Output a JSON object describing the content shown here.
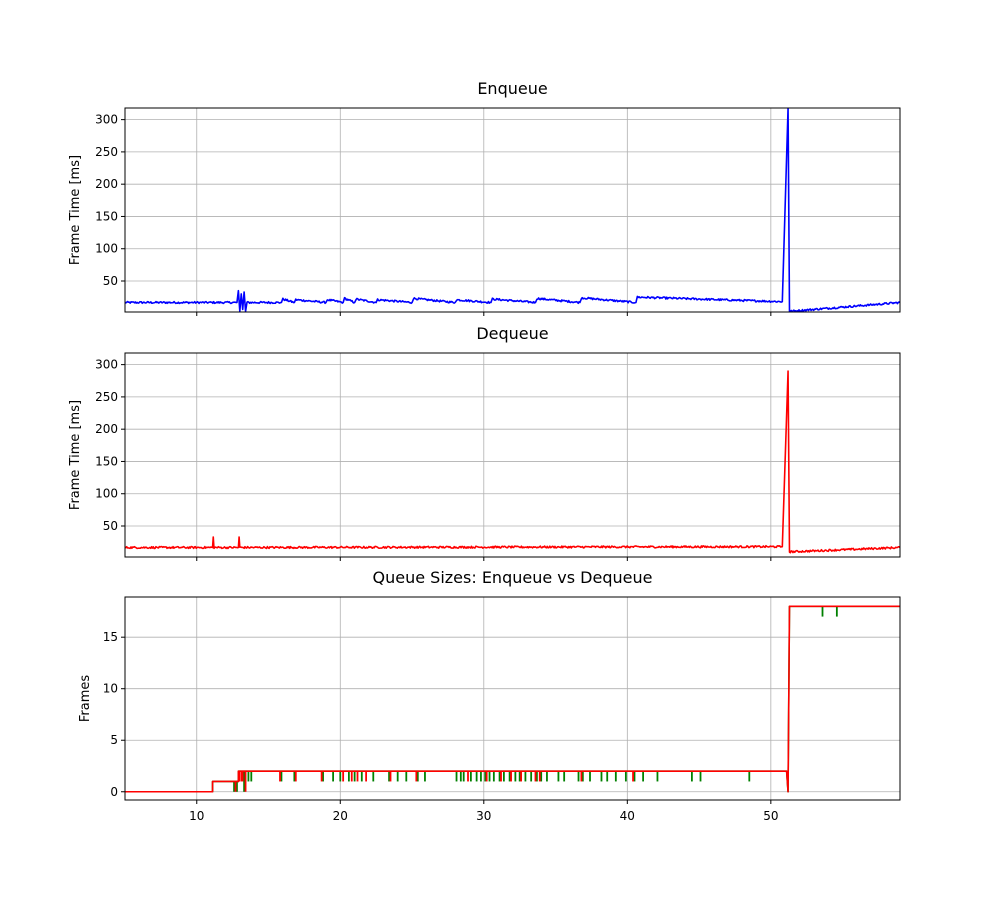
{
  "chart_data": [
    {
      "type": "line",
      "title": "Enqueue",
      "xlabel": "",
      "ylabel": "Frame Time [ms]",
      "xlim": [
        5,
        59
      ],
      "ylim": [
        2,
        318
      ],
      "grid": true,
      "xticks": [
        10,
        20,
        30,
        40,
        50
      ],
      "yticks": [
        50,
        100,
        150,
        200,
        250,
        300
      ],
      "show_xtick_labels": false,
      "series": [
        {
          "color": "#0000ff",
          "baseline": 16.7,
          "noise": 1.5,
          "x": [
            5,
            12.8,
            12.9,
            13.0,
            13.1,
            13.2,
            13.3,
            13.4,
            13.5,
            15.9,
            16.0,
            16.8,
            16.9,
            19.0,
            19.1,
            20.2,
            20.3,
            21.0,
            21.1,
            22.5,
            22.6,
            25.0,
            25.1,
            28.0,
            28.1,
            30.5,
            30.6,
            33.6,
            33.7,
            36.7,
            36.8,
            40.6,
            40.7,
            50.8,
            51.2,
            51.3,
            59
          ],
          "y": [
            16.7,
            16.7,
            35.0,
            3.0,
            30.0,
            6.0,
            33.0,
            3.0,
            16.7,
            16.7,
            22.0,
            16.7,
            21.0,
            16.7,
            21.0,
            16.7,
            23.0,
            16.7,
            22.0,
            16.7,
            21.0,
            16.7,
            23.0,
            16.7,
            21.0,
            16.7,
            22.0,
            16.7,
            23.0,
            16.7,
            24.0,
            16.7,
            25.0,
            18.0,
            318.0,
            3.0,
            16.7
          ]
        }
      ]
    },
    {
      "type": "line",
      "title": "Dequeue",
      "xlabel": "",
      "ylabel": "Frame Time [ms]",
      "xlim": [
        5,
        59
      ],
      "ylim": [
        2,
        318
      ],
      "grid": true,
      "xticks": [
        10,
        20,
        30,
        40,
        50
      ],
      "yticks": [
        50,
        100,
        150,
        200,
        250,
        300
      ],
      "show_xtick_labels": false,
      "series": [
        {
          "color": "#ff0000",
          "baseline": 16.7,
          "noise": 1.5,
          "x": [
            5,
            11.1,
            11.15,
            11.2,
            12.9,
            12.95,
            13.0,
            50.8,
            51.2,
            51.3,
            59
          ],
          "y": [
            16.7,
            16.7,
            33.0,
            16.7,
            16.7,
            33.0,
            16.7,
            18.0,
            290.0,
            10.0,
            16.7
          ]
        }
      ]
    },
    {
      "type": "line",
      "title": "Queue Sizes: Enqueue vs Dequeue",
      "xlabel": "",
      "ylabel": "Frames",
      "xlim": [
        5,
        59
      ],
      "ylim": [
        -0.8,
        18.9
      ],
      "grid": true,
      "xticks": [
        10,
        20,
        30,
        40,
        50
      ],
      "yticks": [
        0,
        5,
        10,
        15
      ],
      "show_xtick_labels": true,
      "series": [
        {
          "color": "#008000",
          "x": [
            5,
            11.1,
            11.1,
            12.9,
            12.9,
            51.1,
            51.2,
            51.3,
            59
          ],
          "y": [
            0,
            0,
            1,
            1,
            2,
            2,
            0,
            18,
            18
          ],
          "dips": [
            {
              "x": 12.6,
              "to": 0
            },
            {
              "x": 12.8,
              "to": 0
            },
            {
              "x": 13.3,
              "to": 0
            },
            {
              "x": 13.6,
              "to": 1
            },
            {
              "x": 13.8,
              "to": 1
            },
            {
              "x": 15.9,
              "to": 1
            },
            {
              "x": 16.8,
              "to": 1
            },
            {
              "x": 18.8,
              "to": 1
            },
            {
              "x": 19.5,
              "to": 1
            },
            {
              "x": 20.0,
              "to": 1
            },
            {
              "x": 20.6,
              "to": 1
            },
            {
              "x": 21.0,
              "to": 1
            },
            {
              "x": 21.5,
              "to": 1
            },
            {
              "x": 22.3,
              "to": 1
            },
            {
              "x": 23.4,
              "to": 1
            },
            {
              "x": 24.0,
              "to": 1
            },
            {
              "x": 24.6,
              "to": 1
            },
            {
              "x": 25.4,
              "to": 1
            },
            {
              "x": 25.9,
              "to": 1
            },
            {
              "x": 28.1,
              "to": 1
            },
            {
              "x": 28.4,
              "to": 1
            },
            {
              "x": 28.6,
              "to": 1
            },
            {
              "x": 29.1,
              "to": 1
            },
            {
              "x": 29.5,
              "to": 1
            },
            {
              "x": 29.8,
              "to": 1
            },
            {
              "x": 30.1,
              "to": 1
            },
            {
              "x": 30.4,
              "to": 1
            },
            {
              "x": 30.7,
              "to": 1
            },
            {
              "x": 31.1,
              "to": 1
            },
            {
              "x": 31.4,
              "to": 1
            },
            {
              "x": 31.8,
              "to": 1
            },
            {
              "x": 32.2,
              "to": 1
            },
            {
              "x": 32.5,
              "to": 1
            },
            {
              "x": 32.9,
              "to": 1
            },
            {
              "x": 33.3,
              "to": 1
            },
            {
              "x": 33.7,
              "to": 1
            },
            {
              "x": 34.0,
              "to": 1
            },
            {
              "x": 34.4,
              "to": 1
            },
            {
              "x": 35.2,
              "to": 1
            },
            {
              "x": 35.6,
              "to": 1
            },
            {
              "x": 36.6,
              "to": 1
            },
            {
              "x": 36.9,
              "to": 1
            },
            {
              "x": 37.4,
              "to": 1
            },
            {
              "x": 38.2,
              "to": 1
            },
            {
              "x": 38.6,
              "to": 1
            },
            {
              "x": 39.2,
              "to": 1
            },
            {
              "x": 39.9,
              "to": 1
            },
            {
              "x": 40.5,
              "to": 1
            },
            {
              "x": 41.1,
              "to": 1
            },
            {
              "x": 42.1,
              "to": 1
            },
            {
              "x": 44.5,
              "to": 1
            },
            {
              "x": 45.1,
              "to": 1
            },
            {
              "x": 48.5,
              "to": 1
            },
            {
              "x": 53.6,
              "to": 17
            },
            {
              "x": 54.6,
              "to": 17
            }
          ]
        },
        {
          "color": "#ff0000",
          "x": [
            5,
            11.1,
            11.1,
            12.9,
            12.9,
            51.1,
            51.2,
            51.3,
            59
          ],
          "y": [
            0,
            0,
            1,
            1,
            2,
            2,
            0,
            18,
            18
          ],
          "dips": [
            {
              "x": 12.7,
              "to": 0
            },
            {
              "x": 12.95,
              "to": 1
            },
            {
              "x": 13.1,
              "to": 1
            },
            {
              "x": 13.2,
              "to": 1
            },
            {
              "x": 13.4,
              "to": 0
            },
            {
              "x": 15.8,
              "to": 1
            },
            {
              "x": 16.9,
              "to": 1
            },
            {
              "x": 18.7,
              "to": 1
            },
            {
              "x": 20.2,
              "to": 1
            },
            {
              "x": 20.8,
              "to": 1
            },
            {
              "x": 21.2,
              "to": 1
            },
            {
              "x": 21.8,
              "to": 1
            },
            {
              "x": 23.5,
              "to": 1
            },
            {
              "x": 25.3,
              "to": 1
            },
            {
              "x": 28.9,
              "to": 1
            },
            {
              "x": 30.2,
              "to": 1
            },
            {
              "x": 31.2,
              "to": 1
            },
            {
              "x": 31.9,
              "to": 1
            },
            {
              "x": 32.6,
              "to": 1
            },
            {
              "x": 33.6,
              "to": 1
            },
            {
              "x": 33.9,
              "to": 1
            },
            {
              "x": 36.8,
              "to": 1
            },
            {
              "x": 40.4,
              "to": 1
            }
          ]
        }
      ]
    }
  ]
}
